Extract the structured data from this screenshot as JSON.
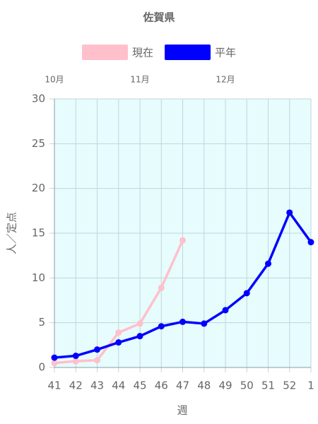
{
  "chart_data": {
    "type": "line",
    "title": "佐賀県",
    "x_label": "週",
    "y_label": "人／定点",
    "categories": [
      "41",
      "42",
      "43",
      "44",
      "45",
      "46",
      "47",
      "48",
      "49",
      "50",
      "51",
      "52",
      "1"
    ],
    "series": [
      {
        "name": "現在",
        "color": "#ffc0cb",
        "values": [
          0.5,
          0.7,
          0.8,
          3.9,
          4.9,
          8.9,
          14.2,
          null,
          null,
          null,
          null,
          null,
          null
        ]
      },
      {
        "name": "平年",
        "color": "#0000ff",
        "values": [
          1.1,
          1.3,
          2.0,
          2.8,
          3.5,
          4.6,
          5.1,
          4.9,
          6.4,
          8.3,
          11.6,
          17.3,
          14.0
        ]
      }
    ],
    "x2ticks": [
      {
        "value": "41",
        "label": "10月"
      },
      {
        "value": "45",
        "label": "11月"
      },
      {
        "value": "49",
        "label": "12月"
      }
    ],
    "ylim": [
      0,
      30
    ],
    "yticks": [
      0,
      5,
      10,
      15,
      20,
      25,
      30
    ],
    "grid": true,
    "legend": "top",
    "plot_background": "#e6fcfd"
  }
}
